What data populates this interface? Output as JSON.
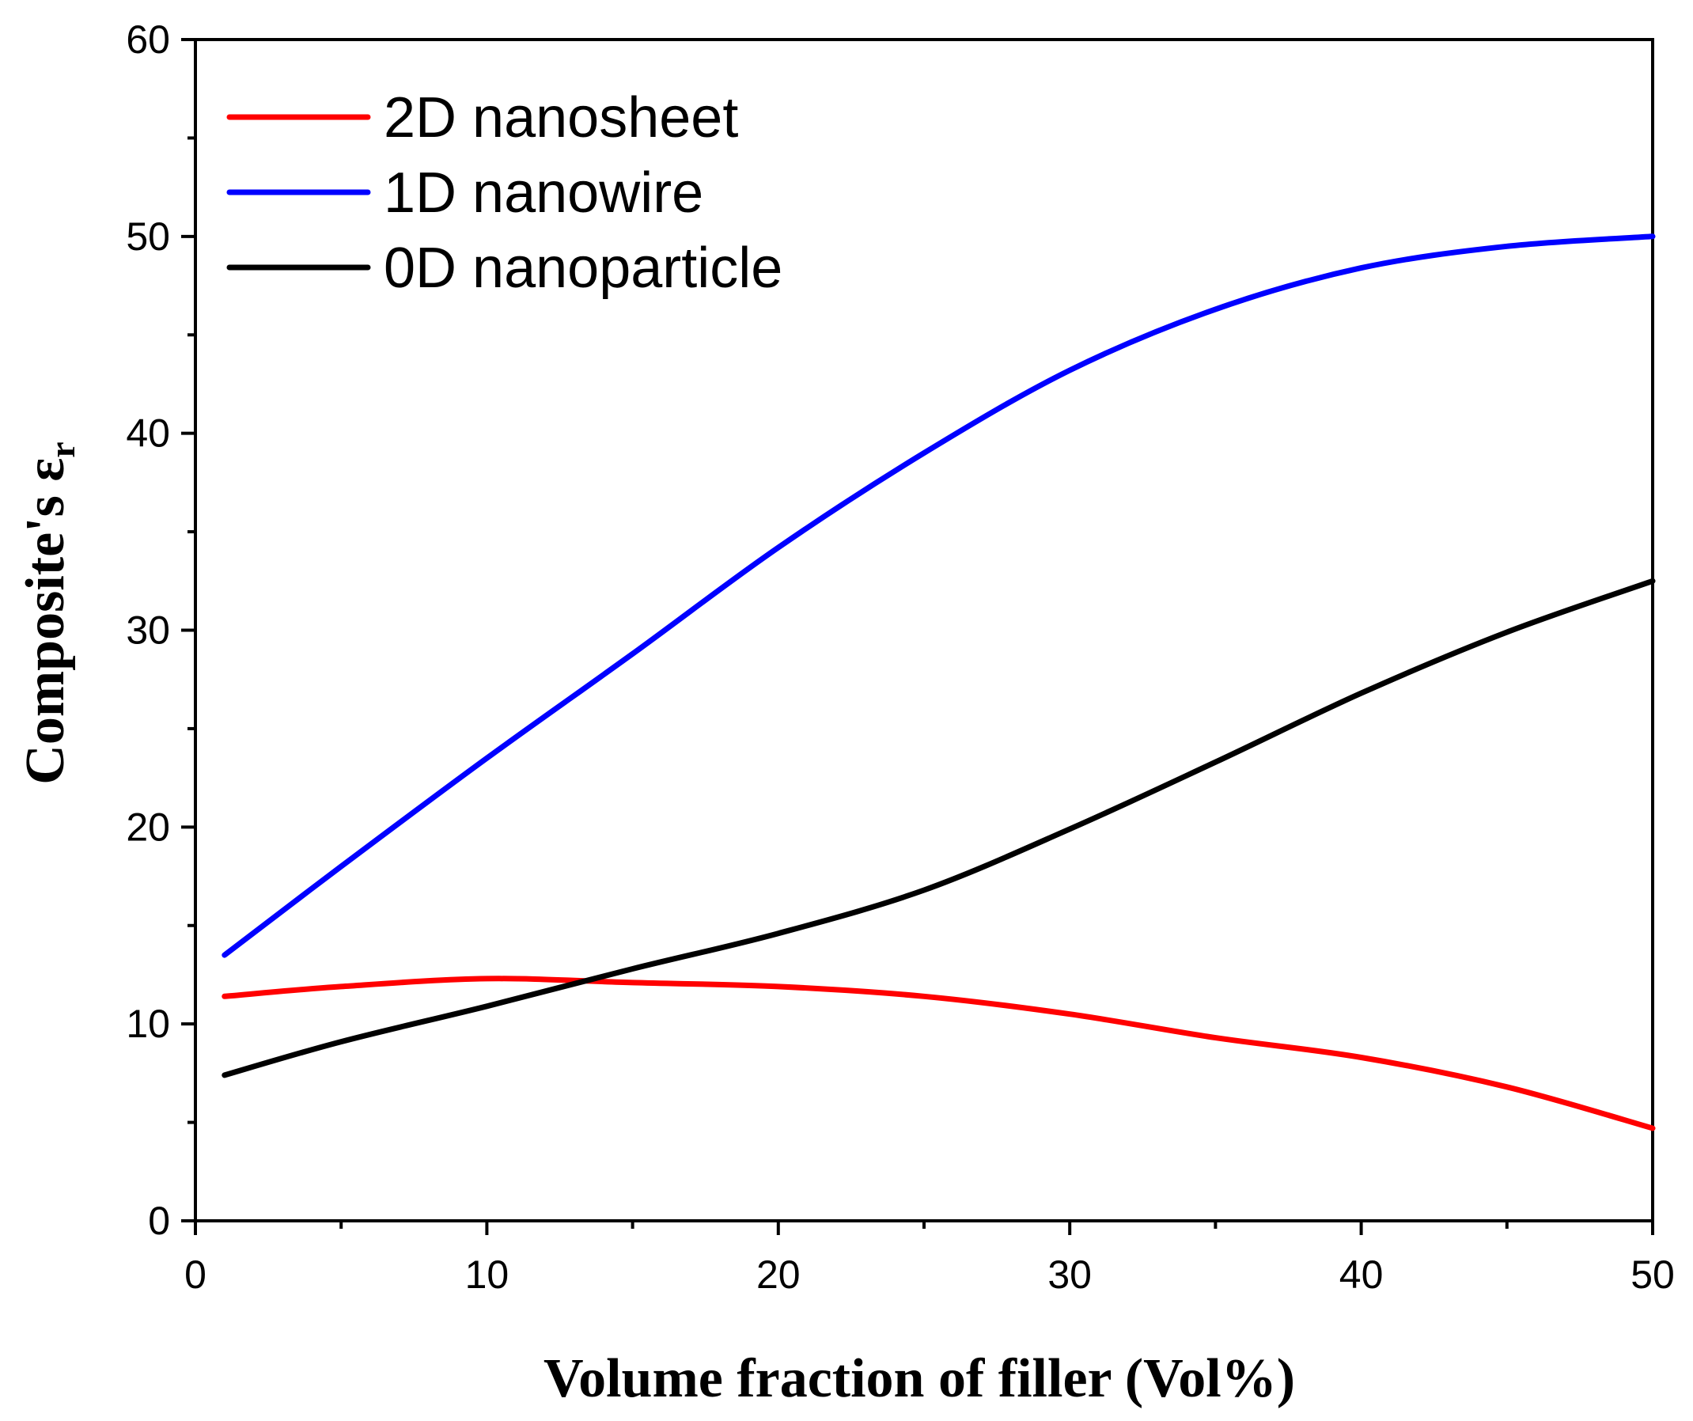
{
  "chart_data": {
    "type": "line",
    "title": "",
    "xlabel": "Volume fraction of filler (Vol%)",
    "ylabel": {
      "main": "Composite's ε",
      "subscript": "r"
    },
    "xlim": [
      0,
      50
    ],
    "ylim": [
      0,
      60
    ],
    "xticks": [
      0,
      10,
      20,
      30,
      40,
      50
    ],
    "yticks": [
      0,
      10,
      20,
      30,
      40,
      50,
      60
    ],
    "legend_position": "top-left",
    "grid": false,
    "series": [
      {
        "name": "2D nanosheet",
        "color": "#ff0000",
        "x": [
          1,
          5,
          10,
          15,
          20,
          25,
          30,
          35,
          40,
          45,
          50
        ],
        "y": [
          11.4,
          11.9,
          12.3,
          12.1,
          11.9,
          11.4,
          10.5,
          9.3,
          8.3,
          6.8,
          4.7
        ]
      },
      {
        "name": "1D nanowire",
        "color": "#0000ff",
        "x": [
          1,
          5,
          10,
          15,
          20,
          25,
          30,
          35,
          40,
          45,
          50
        ],
        "y": [
          13.5,
          18.0,
          23.5,
          28.8,
          34.2,
          39.0,
          43.2,
          46.3,
          48.4,
          49.5,
          50.0
        ]
      },
      {
        "name": "0D nanoparticle",
        "color": "#000000",
        "x": [
          1,
          5,
          10,
          15,
          20,
          25,
          30,
          35,
          40,
          45,
          50
        ],
        "y": [
          7.4,
          9.1,
          10.9,
          12.8,
          14.6,
          16.8,
          19.9,
          23.3,
          26.8,
          29.9,
          32.5
        ]
      }
    ]
  }
}
